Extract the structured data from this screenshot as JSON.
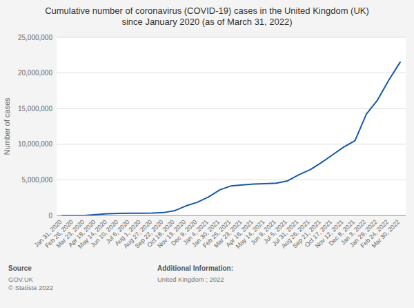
{
  "chart_data": {
    "type": "line",
    "title": "Cumulative number of coronavirus (COVID-19) cases in the United Kingdom (UK)\nsince January 2020 (as of March 31, 2022)",
    "ylabel": "Number of cases",
    "color": "#1558a7",
    "grid": true,
    "categories": [
      "Jan 31, 2020",
      "Feb 26, 2020",
      "Mar 23, 2020",
      "Apr 18, 2020",
      "May 14, 2020",
      "Jun 10, 2020",
      "Jul 6, 2020",
      "Aug 1, 2020",
      "Aug 27, 2020",
      "Sep 22, 2020",
      "Oct 18, 2020",
      "Nov 13, 2020",
      "Dec 9, 2020",
      "Jan 4, 2021",
      "Jan 30, 2021",
      "Feb 25, 2021",
      "Mar 23, 2021",
      "Apr 16, 2021",
      "May 14, 2021",
      "Jun 9, 2021",
      "Jul 5, 2021",
      "Jul 31, 2021",
      "Aug 26, 2021",
      "Sep 21, 2021",
      "Oct 17, 2021",
      "Nov 12, 2021",
      "Dec 8, 2021",
      "Jan 3, 2022",
      "Jan 29, 2022",
      "Feb 24, 2022",
      "Mar 30, 2022"
    ],
    "values": [
      2,
      15,
      9529,
      124743,
      234000,
      290000,
      315000,
      318000,
      335000,
      400000,
      680000,
      1350000,
      1850000,
      2600000,
      3600000,
      4150000,
      4280000,
      4400000,
      4460000,
      4530000,
      4850000,
      5700000,
      6400000,
      7400000,
      8500000,
      9600000,
      10500000,
      14200000,
      16200000,
      19000000,
      21500000
    ],
    "ylim": [
      0,
      25000000
    ],
    "yticks": [
      0,
      {
        "value": 5000000,
        "label": "5,000,000"
      },
      {
        "value": 10000000,
        "label": "10,000,000"
      },
      {
        "value": 15000000,
        "label": "15,000,000"
      },
      {
        "value": 20000000,
        "label": "20,000,000"
      },
      {
        "value": 25000000,
        "label": "25,000,000"
      }
    ],
    "annotations": [
      "Source",
      "GOV.UK\n© Statista 2022",
      "Additional Information:",
      "United Kingdom ; 2022"
    ]
  }
}
